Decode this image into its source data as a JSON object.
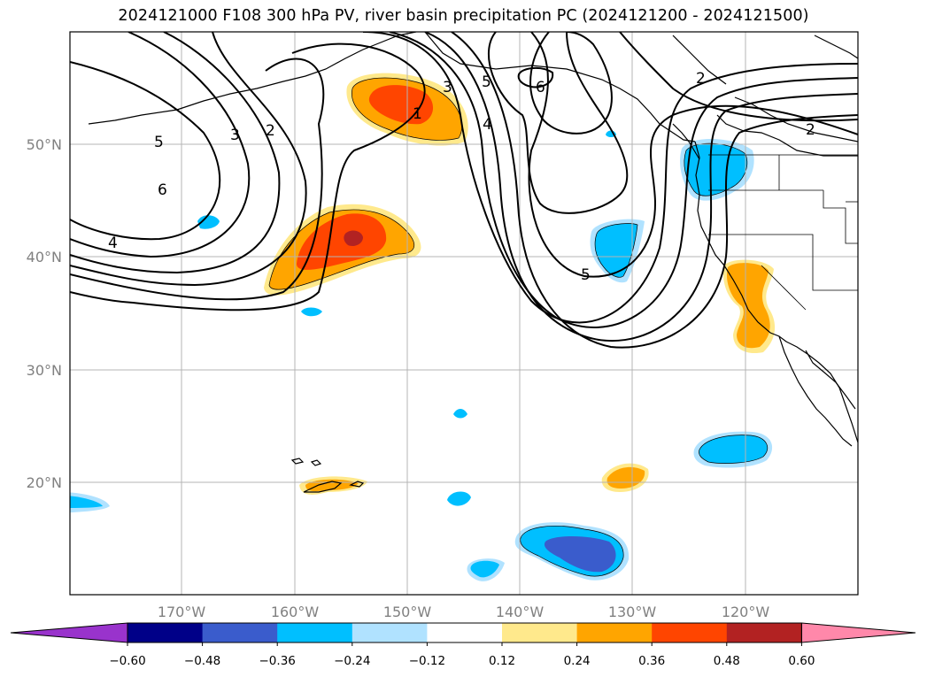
{
  "title": "2024121000 F108 300 hPa PV, river basin precipitation PC (2024121200 - 2024121500)",
  "lon_ticks": [
    "170°W",
    "160°W",
    "150°W",
    "140°W",
    "130°W",
    "120°W"
  ],
  "lat_ticks": [
    "50°N",
    "40°N",
    "30°N",
    "20°N"
  ],
  "colorbar": {
    "tick_labels": [
      "−0.60",
      "−0.48",
      "−0.36",
      "−0.24",
      "−0.12",
      "0.12",
      "0.24",
      "0.36",
      "0.48",
      "0.60"
    ],
    "colors": [
      "#9933cc",
      "#000088",
      "#3a5ccc",
      "#00bfff",
      "#b0e2ff",
      "#ffffff",
      "#ffe98c",
      "#ffa500",
      "#ff4500",
      "#b22222",
      "#ff88aa"
    ]
  },
  "contour_labels": [
    "1",
    "2",
    "3",
    "4",
    "5",
    "6",
    "2",
    "3",
    "4",
    "5",
    "6",
    "5",
    "2"
  ],
  "colors": {
    "orange": "#ffa500",
    "red_orange": "#ff4500",
    "dark_red": "#b22222",
    "yellow": "#ffe98c",
    "light_blue": "#b0e2ff",
    "deep_sky_blue": "#00bfff",
    "royal_blue": "#3a5ccc"
  }
}
